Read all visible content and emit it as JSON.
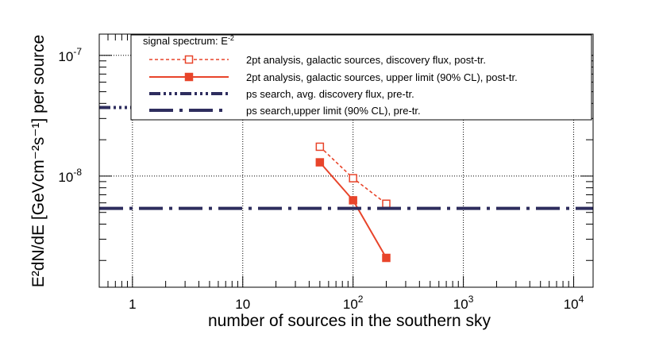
{
  "chart_data": {
    "type": "line",
    "title": "",
    "xlabel": "number of sources in the southern sky",
    "ylabel": "E²dN/dE [GeVcm⁻²s⁻¹] per source",
    "x_scale": "log",
    "y_scale": "log",
    "xlim": [
      0.5,
      15000
    ],
    "ylim": [
      1.2e-09,
      1.5e-07
    ],
    "grid": true,
    "legend_placement": "top-right",
    "x_ticks": [
      {
        "value": 1,
        "base": "1",
        "exp": ""
      },
      {
        "value": 10,
        "base": "10",
        "exp": ""
      },
      {
        "value": 100,
        "base": "10",
        "exp": "2"
      },
      {
        "value": 1000,
        "base": "10",
        "exp": "3"
      },
      {
        "value": 10000,
        "base": "10",
        "exp": "4"
      }
    ],
    "y_ticks": [
      {
        "value": 1e-08,
        "base": "10",
        "exp": "-8"
      },
      {
        "value": 1e-07,
        "base": "10",
        "exp": "-7"
      }
    ],
    "legend_header": {
      "text": "signal spectrum: E",
      "exp": "-2"
    },
    "series": [
      {
        "name": "2pt analysis, galactic sources, discovery flux, post-tr.",
        "color": "#e8442a",
        "line_style": "dashed",
        "marker": "open-square",
        "x": [
          50,
          100,
          200
        ],
        "y": [
          1.75e-08,
          9.6e-09,
          5.9e-09
        ]
      },
      {
        "name": "2pt analysis, galactic sources, upper limit (90% CL), post-tr.",
        "color": "#e8442a",
        "line_style": "solid",
        "marker": "filled-square",
        "x": [
          50,
          100,
          200
        ],
        "y": [
          1.3e-08,
          6.3e-09,
          2.1e-09
        ]
      },
      {
        "name": "ps search, avg. discovery flux, pre-tr.",
        "color": "#2e2d5e",
        "line_style": "dash-dot-dot",
        "marker": "none",
        "x": [
          0.5,
          15000
        ],
        "y": [
          3.7e-08,
          3.7e-08
        ]
      },
      {
        "name": "ps search,upper limit (90% CL), pre-tr.",
        "color": "#2e2d5e",
        "line_style": "long-dash-dot",
        "marker": "none",
        "x": [
          0.5,
          15000
        ],
        "y": [
          5.4e-09,
          5.4e-09
        ]
      }
    ]
  }
}
